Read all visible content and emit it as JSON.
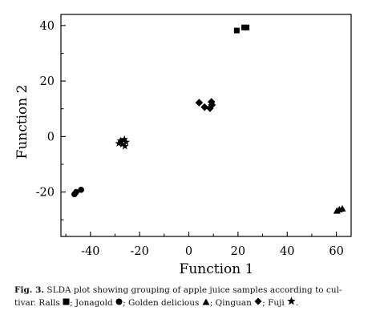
{
  "chart_data": {
    "type": "scatter",
    "title": "",
    "xlabel": "Function 1",
    "ylabel": "Function 2",
    "xlim": [
      -52,
      66
    ],
    "ylim": [
      -36,
      44
    ],
    "xticks": [
      -40,
      -20,
      0,
      20,
      40,
      60
    ],
    "yticks": [
      -20,
      0,
      20,
      40
    ],
    "grid": false,
    "series": [
      {
        "name": "Ralls",
        "marker": "square",
        "x": [
          19.5,
          22.5,
          23.5
        ],
        "y": [
          38.2,
          39.3,
          39.3
        ]
      },
      {
        "name": "Jonagold",
        "marker": "circle",
        "x": [
          -46.5,
          -45.8,
          -43.8
        ],
        "y": [
          -20.8,
          -20.0,
          -19.2
        ]
      },
      {
        "name": "Golden delicious",
        "marker": "triangle",
        "x": [
          60.2,
          61.2,
          62.4
        ],
        "y": [
          -26.8,
          -26.3,
          -26.0
        ]
      },
      {
        "name": "Qinguan",
        "marker": "diamond",
        "x": [
          4.2,
          6.4,
          8.6,
          9.2,
          9.4
        ],
        "y": [
          12.2,
          10.6,
          10.2,
          12.5,
          11.4
        ]
      },
      {
        "name": "Fuji",
        "marker": "star",
        "x": [
          -28.5,
          -27.8,
          -27.0,
          -26.2,
          -25.5,
          -26.0,
          -27.3
        ],
        "y": [
          -2.5,
          -1.5,
          -2.8,
          -1.0,
          -2.0,
          -3.5,
          -1.8
        ]
      }
    ]
  },
  "caption": {
    "fig_label": "Fig. 3.",
    "text_1": " SLDA plot showing grouping of apple juice samples according to cul-",
    "text_2": "tivar. Ralls ",
    "sep_1": "; Jonagold ",
    "sep_2": "; Golden delicious ",
    "sep_3": "; Qinguan ",
    "sep_4": "; Fuji ",
    "end": "."
  }
}
